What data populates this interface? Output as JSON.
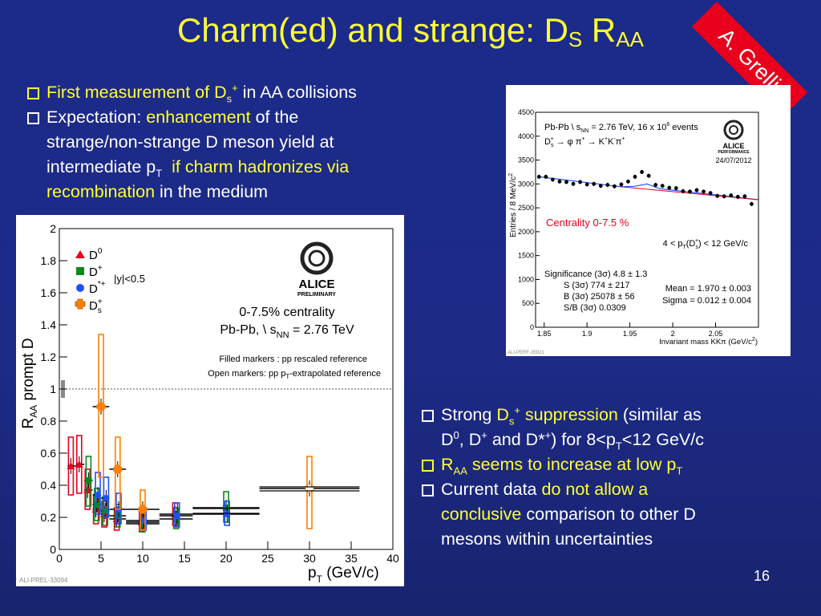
{
  "slide": {
    "title_main": "Charm(ed) and strange: D",
    "title_sub_s": "S",
    "title_r": " R",
    "title_sub_aa": "AA",
    "stamp": "A. Grelli",
    "page_number": "16"
  },
  "bullets_top": {
    "b1_pre": "First measurement of D",
    "b1_sub": "s",
    "b1_sup": "+",
    "b1_post": " in AA collisions",
    "b2_pre": "Expectation: ",
    "b2_hl": "enhancement",
    "b2_post": " of the",
    "b2_l2": "strange/non-strange D meson yield at",
    "b2_l3_pre": "intermediate p",
    "b2_l3_sub": "T",
    "b2_l3_hl": "  if charm hadronizes via",
    "b2_l4_hl": "recombination",
    "b2_l4_post": " in the medium"
  },
  "bullets_bottom": {
    "c1_pre": "Strong ",
    "c1_d": "D",
    "c1_sub": "s",
    "c1_sup": "+",
    "c1_hl": " suppression",
    "c1_post": " (similar as",
    "c1_l2_a": "D",
    "c1_l2_sup0": "0",
    "c1_l2_b": ", D",
    "c1_l2_supp": "+",
    "c1_l2_c": " and D*",
    "c1_l2_supst": "+",
    "c1_l2_d": ") for 8<p",
    "c1_l2_subT": "T",
    "c1_l2_e": "<12 GeV/c",
    "c2_a": "R",
    "c2_sub": "AA",
    "c2_b": " seems to increase at low p",
    "c2_subT": "T",
    "c3_pre": "Current data ",
    "c3_hl": "do not allow a",
    "c3_l2_hl": "conclusive",
    "c3_l2_post": " comparison to other D",
    "c3_l3": "mesons within uncertainties"
  },
  "raa_plot": {
    "ylabel": "R",
    "ylabel_sub": "AA",
    "ylabel_post": " prompt D",
    "xlabel": "p",
    "xlabel_sub": "T",
    "xlabel_post": " (GeV/c)",
    "legend": [
      "D",
      "D",
      "D",
      "D"
    ],
    "legend_sup": [
      "0",
      "+",
      "*+",
      "+"
    ],
    "legend_sub": [
      "",
      "",
      "",
      "s"
    ],
    "rapidity": "|y|<0.5",
    "alice": "ALICE",
    "preliminary": "PRELIMINARY",
    "centrality": "0-7.5% centrality",
    "system": "Pb-Pb, \\ s",
    "system_sub": "NN",
    "system_post": " = 2.76 TeV",
    "note1": "Filled markers : pp rescaled reference",
    "note2_pre": "Open markers: pp p",
    "note2_sub": "T",
    "note2_post": "-extrapolated reference",
    "tag": "ALI-PREL-33094",
    "colors": {
      "D0": "#e8001c",
      "Dplus": "#0b8a1a",
      "Dstar": "#1f4fff",
      "Ds": "#ff7f00"
    }
  },
  "mass_plot": {
    "ylabel": "Entries / 8 MeV/c",
    "ylabel_sup": "2",
    "xlabel": "Invariant mass KKπ (GeV/c",
    "xlabel_sup": "2",
    "xlabel_end": ")",
    "line1": "Pb-Pb \\ s",
    "line1_sub": "NN",
    "line1_post": " = 2.76 TeV, 16 x 10",
    "line1_sup": "6",
    "line1_end": " events",
    "decay": "D",
    "decay_sub": "s",
    "decay_sup": "+",
    "decay_post": " → φ π",
    "decay_sup2": "+",
    "decay_post2": " → K",
    "decay_sup3": "+",
    "decay_k2": "K",
    "decay_sup4": "-",
    "decay_pi": "π",
    "decay_sup5": "+",
    "alice": "ALICE",
    "performance": "PERFORMANCE",
    "date": "24/07/2012",
    "centrality": "Centrality 0-7.5 %",
    "pt_range_pre": "4 < p",
    "pt_range_sub": "T",
    "pt_range_mid": "(D",
    "pt_range_sub2": "s",
    "pt_range_sup2": "+",
    "pt_range_post": ") < 12 GeV/c",
    "significance": "Significance (3σ) 4.8 ± 1.3",
    "s3": "S (3σ) 774 ± 217",
    "b3": "B (3σ) 25078 ± 56",
    "sb": "S/B (3σ) 0.0309",
    "mean": "Mean = 1.970 ± 0.003",
    "sigma": "Sigma = 0.012 ± 0.004",
    "tag": "ALI-PERF-35921"
  },
  "chart_data": [
    {
      "type": "scatter",
      "title": "",
      "xlabel": "pT (GeV/c)",
      "ylabel": "RAA prompt D",
      "xlim": [
        0,
        40
      ],
      "ylim": [
        0,
        2
      ],
      "x_ticks": [
        0,
        5,
        10,
        15,
        20,
        25,
        30,
        35,
        40
      ],
      "y_ticks": [
        0,
        0.2,
        0.4,
        0.6,
        0.8,
        1,
        1.2,
        1.4,
        1.6,
        1.8,
        2
      ],
      "reference_line": 1,
      "legend_position": "top-left",
      "series": [
        {
          "name": "D0",
          "marker": "triangle",
          "x": [
            1.5,
            2.5,
            3.5,
            4.5,
            5.5,
            7,
            10,
            14
          ],
          "y": [
            0.52,
            0.53,
            0.37,
            0.25,
            0.22,
            0.19,
            0.17,
            0.22
          ],
          "xerr": [
            0.5,
            0.5,
            0.5,
            0.5,
            0.5,
            1,
            2,
            2
          ],
          "syst_low": [
            0.34,
            0.35,
            0.25,
            0.16,
            0.14,
            0.12,
            0.11,
            0.15
          ],
          "syst_high": [
            0.7,
            0.71,
            0.5,
            0.34,
            0.3,
            0.26,
            0.23,
            0.29
          ]
        },
        {
          "name": "D+",
          "marker": "square",
          "x": [
            3.5,
            4.5,
            5.5,
            7,
            10,
            14,
            20
          ],
          "y": [
            0.43,
            0.28,
            0.24,
            0.21,
            0.16,
            0.19,
            0.26
          ],
          "xerr": [
            0.5,
            0.5,
            0.5,
            1,
            2,
            2,
            4
          ],
          "syst_low": [
            0.27,
            0.18,
            0.15,
            0.14,
            0.11,
            0.13,
            0.17
          ],
          "syst_high": [
            0.58,
            0.38,
            0.33,
            0.28,
            0.22,
            0.26,
            0.36
          ]
        },
        {
          "name": "D*+",
          "marker": "circle",
          "x": [
            4.5,
            5.5,
            7,
            10,
            14,
            20
          ],
          "y": [
            0.34,
            0.32,
            0.25,
            0.18,
            0.21,
            0.22
          ],
          "xerr": [
            0.5,
            0.5,
            1,
            2,
            2,
            4
          ],
          "syst_low": [
            0.22,
            0.2,
            0.16,
            0.12,
            0.14,
            0.15
          ],
          "syst_high": [
            0.48,
            0.45,
            0.35,
            0.25,
            0.29,
            0.3
          ]
        },
        {
          "name": "Ds+",
          "marker": "cross",
          "x": [
            5,
            7,
            10,
            30
          ],
          "y": [
            0.89,
            0.5,
            0.25,
            0.38
          ],
          "xerr": [
            1,
            1,
            2,
            6
          ],
          "syst_low": [
            0.45,
            0.25,
            0.12,
            0.13
          ],
          "syst_high": [
            1.34,
            0.7,
            0.37,
            0.58
          ]
        }
      ]
    },
    {
      "type": "scatter",
      "title": "",
      "xlabel": "Invariant mass KKπ (GeV/c2)",
      "ylabel": "Entries / 8 MeV/c2",
      "xlim": [
        1.84,
        2.1
      ],
      "ylim": [
        0,
        4500
      ],
      "x_ticks": [
        1.85,
        1.9,
        1.95,
        2,
        2.05
      ],
      "y_ticks": [
        0,
        500,
        1000,
        1500,
        2000,
        2500,
        3000,
        3500,
        4000,
        4500
      ],
      "series": [
        {
          "name": "data",
          "x": [
            1.844,
            1.852,
            1.86,
            1.868,
            1.876,
            1.884,
            1.892,
            1.9,
            1.908,
            1.916,
            1.924,
            1.932,
            1.94,
            1.948,
            1.956,
            1.964,
            1.972,
            1.98,
            1.988,
            1.996,
            2.004,
            2.012,
            2.02,
            2.028,
            2.036,
            2.044,
            2.052,
            2.06,
            2.068,
            2.076,
            2.084,
            2.092
          ],
          "y": [
            3150,
            3150,
            3090,
            3050,
            3040,
            3000,
            3040,
            2990,
            3000,
            2960,
            2980,
            2950,
            2990,
            3050,
            3150,
            3250,
            3170,
            2980,
            2960,
            2920,
            2910,
            2850,
            2840,
            2870,
            2840,
            2810,
            2750,
            2740,
            2760,
            2730,
            2740,
            2580
          ]
        },
        {
          "name": "fit",
          "x": [
            1.844,
            1.94,
            1.955,
            1.97,
            1.985,
            2.1
          ],
          "y": [
            3150,
            2940,
            2950,
            3000,
            2900,
            2670
          ]
        }
      ]
    }
  ]
}
